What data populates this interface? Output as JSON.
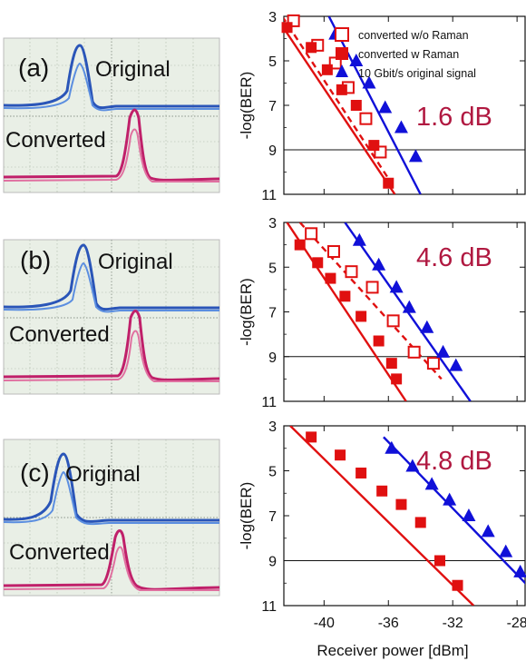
{
  "chart_data": [
    {
      "type": "scatter",
      "panel_label": "(a)",
      "eye_labels": {
        "original": "Original",
        "converted": "Converted"
      },
      "penalty_label": "1.6 dB",
      "ylabel": "-log(BER)",
      "ylim": [
        11,
        3
      ],
      "yticks": [
        "3",
        "5",
        "7",
        "9",
        "11"
      ],
      "xlim": [
        -42.5,
        -27.5
      ],
      "reference_line": 9,
      "series": [
        {
          "name": "converted w/o Raman",
          "marker": "open-square",
          "color": "#e01010",
          "line": "dashed",
          "x": [
            -41.9,
            -40.4,
            -39.3,
            -38.5,
            -37.4,
            -36.5
          ],
          "y": [
            3.2,
            4.3,
            5.1,
            6.2,
            7.6,
            9.1
          ]
        },
        {
          "name": "converted w Raman",
          "marker": "filled-square",
          "color": "#e01010",
          "line": "solid",
          "x": [
            -42.3,
            -40.8,
            -39.8,
            -38.9,
            -38.0,
            -36.9,
            -36.0
          ],
          "y": [
            3.5,
            4.4,
            5.4,
            6.3,
            7.0,
            8.8,
            10.5
          ]
        },
        {
          "name": "10 Gbit/s original signal",
          "marker": "filled-triangle",
          "color": "#1010d8",
          "line": "solid",
          "x": [
            -39.3,
            -38.0,
            -37.2,
            -36.2,
            -35.2,
            -34.3
          ],
          "y": [
            3.8,
            5.0,
            6.0,
            7.1,
            8.0,
            9.3
          ]
        }
      ],
      "fits": [
        {
          "series": "converted w/o Raman",
          "x": [
            -42.6,
            -35.9
          ],
          "y": [
            3.0,
            10.4
          ]
        },
        {
          "series": "converted w Raman",
          "x": [
            -43.0,
            -35.6
          ],
          "y": [
            3.0,
            11.0
          ]
        },
        {
          "series": "10 Gbit/s original signal",
          "x": [
            -39.7,
            -34.0
          ],
          "y": [
            3.0,
            11.0
          ]
        }
      ],
      "legend": [
        "converted w/o Raman",
        "converted w Raman",
        "10 Gbit/s original signal"
      ]
    },
    {
      "type": "scatter",
      "panel_label": "(b)",
      "eye_labels": {
        "original": "Original",
        "converted": "Converted"
      },
      "penalty_label": "4.6 dB",
      "ylabel": "-log(BER)",
      "ylim": [
        11,
        3
      ],
      "yticks": [
        "3",
        "5",
        "7",
        "9",
        "11"
      ],
      "xlim": [
        -42.5,
        -27.5
      ],
      "reference_line": 9,
      "series": [
        {
          "name": "converted w/o Raman",
          "marker": "open-square",
          "color": "#e01010",
          "line": "dashed",
          "x": [
            -40.8,
            -39.4,
            -38.3,
            -37.0,
            -35.7,
            -34.4,
            -33.2
          ],
          "y": [
            3.5,
            4.3,
            5.2,
            5.9,
            7.4,
            8.8,
            9.3
          ]
        },
        {
          "name": "converted w Raman",
          "marker": "filled-square",
          "color": "#e01010",
          "line": "solid",
          "x": [
            -41.5,
            -40.4,
            -39.6,
            -38.7,
            -37.7,
            -36.6,
            -35.8,
            -35.5
          ],
          "y": [
            4.0,
            4.8,
            5.5,
            6.3,
            7.2,
            8.3,
            9.3,
            10.0
          ]
        },
        {
          "name": "10 Gbit/s original signal",
          "marker": "filled-triangle",
          "color": "#1010d8",
          "line": "solid",
          "x": [
            -37.8,
            -36.6,
            -35.5,
            -34.7,
            -33.6,
            -32.6,
            -31.8
          ],
          "y": [
            3.8,
            4.9,
            5.9,
            6.8,
            7.7,
            8.8,
            9.4
          ]
        }
      ],
      "fits": [
        {
          "series": "converted w/o Raman",
          "x": [
            -41.5,
            -32.7
          ],
          "y": [
            3.0,
            10.0
          ]
        },
        {
          "series": "converted w Raman",
          "x": [
            -42.3,
            -34.9
          ],
          "y": [
            3.0,
            11.0
          ]
        },
        {
          "series": "10 Gbit/s original signal",
          "x": [
            -38.7,
            -30.9
          ],
          "y": [
            3.0,
            11.0
          ]
        }
      ]
    },
    {
      "type": "scatter",
      "panel_label": "(c)",
      "eye_labels": {
        "original": "Original",
        "converted": "Converted"
      },
      "penalty_label": "4.8 dB",
      "ylabel": "-log(BER)",
      "ylim": [
        11,
        3
      ],
      "yticks": [
        "3",
        "5",
        "7",
        "9",
        "11"
      ],
      "xticks": [
        "-40",
        "-36",
        "-32",
        "-28"
      ],
      "xlim": [
        -42.5,
        -27.5
      ],
      "xlabel": "Receiver power [dBm]",
      "reference_line": 9,
      "series": [
        {
          "name": "converted w Raman",
          "marker": "filled-square",
          "color": "#e01010",
          "line": "solid",
          "x": [
            -40.8,
            -39.0,
            -37.7,
            -36.4,
            -35.2,
            -34.0,
            -32.8,
            -31.7
          ],
          "y": [
            3.5,
            4.3,
            5.1,
            5.9,
            6.5,
            7.3,
            9.0,
            10.1
          ]
        },
        {
          "name": "10 Gbit/s original signal",
          "marker": "filled-triangle",
          "color": "#1010d8",
          "line": "solid",
          "x": [
            -35.8,
            -34.5,
            -33.3,
            -32.2,
            -31.0,
            -29.8,
            -28.7,
            -27.8
          ],
          "y": [
            4.0,
            4.8,
            5.6,
            6.3,
            7.0,
            7.7,
            8.6,
            9.5
          ]
        }
      ],
      "fits": [
        {
          "series": "converted w Raman",
          "x": [
            -42.1,
            -30.7
          ],
          "y": [
            3.0,
            11.0
          ]
        },
        {
          "series": "10 Gbit/s original signal",
          "x": [
            -36.3,
            -26.4
          ],
          "y": [
            3.5,
            10.8
          ]
        }
      ]
    }
  ]
}
